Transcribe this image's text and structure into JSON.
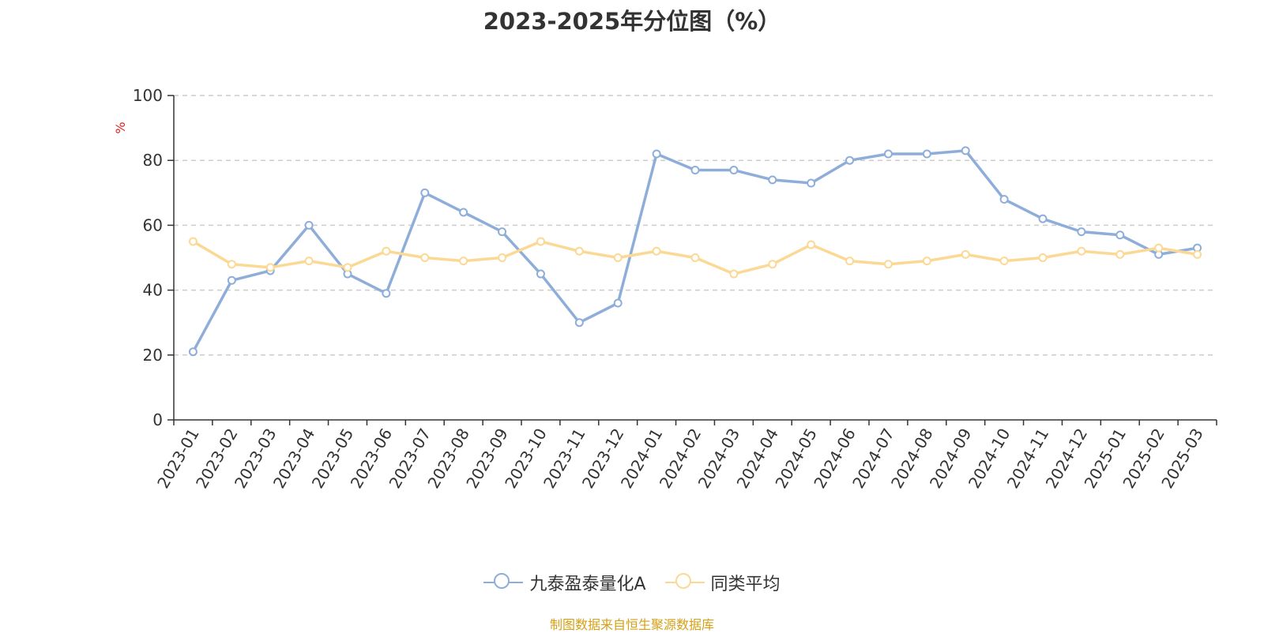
{
  "chart_data": {
    "type": "line",
    "title": "2023-2025年分位图（%）",
    "ylabel": "%",
    "xlabel": "",
    "ylim": [
      0,
      100
    ],
    "yticks": [
      0,
      20,
      40,
      60,
      80,
      100
    ],
    "grid": true,
    "legend_position": "bottom",
    "categories": [
      "2023-01",
      "2023-02",
      "2023-03",
      "2023-04",
      "2023-05",
      "2023-06",
      "2023-07",
      "2023-08",
      "2023-09",
      "2023-10",
      "2023-11",
      "2023-12",
      "2024-01",
      "2024-02",
      "2024-03",
      "2024-04",
      "2024-05",
      "2024-06",
      "2024-07",
      "2024-08",
      "2024-09",
      "2024-10",
      "2024-11",
      "2024-12",
      "2025-01",
      "2025-02",
      "2025-03"
    ],
    "series": [
      {
        "name": "九泰盈泰量化A",
        "color": "#8eaed9",
        "values": [
          21,
          43,
          46,
          60,
          45,
          39,
          70,
          64,
          58,
          45,
          30,
          36,
          82,
          77,
          77,
          74,
          73,
          80,
          82,
          82,
          83,
          68,
          62,
          58,
          57,
          51,
          53
        ]
      },
      {
        "name": "同类平均",
        "color": "#fbd994",
        "values": [
          55,
          48,
          47,
          49,
          47,
          52,
          50,
          49,
          50,
          55,
          52,
          50,
          52,
          50,
          45,
          48,
          54,
          49,
          48,
          49,
          51,
          49,
          50,
          52,
          51,
          53,
          51
        ]
      }
    ]
  },
  "source_note": "制图数据来自恒生聚源数据库"
}
